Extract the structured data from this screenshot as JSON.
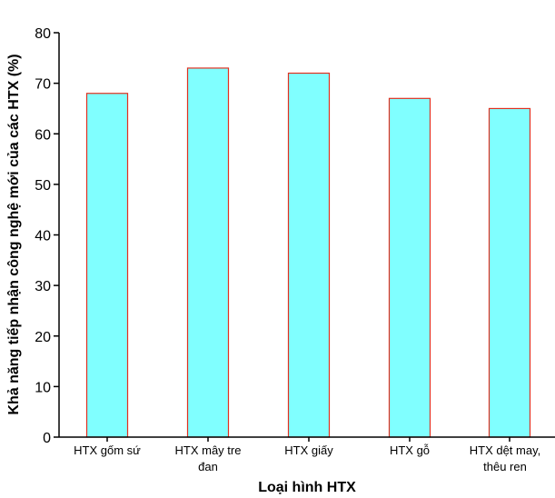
{
  "chart_data": {
    "type": "bar",
    "categories": [
      "HTX gốm sứ",
      "HTX mây tre đan",
      "HTX giấy",
      "HTX gỗ",
      "HTX dệt may, thêu ren"
    ],
    "category_lines": [
      [
        "HTX gốm sứ"
      ],
      [
        "HTX mây tre",
        "đan"
      ],
      [
        "HTX giấy"
      ],
      [
        "HTX gỗ"
      ],
      [
        "HTX dệt may,",
        "thêu ren"
      ]
    ],
    "values": [
      68,
      73,
      72,
      67,
      65
    ],
    "title": "",
    "xlabel": "Loại hình HTX",
    "ylabel": "Khả năng tiếp nhận công nghệ mới của các HTX (%)",
    "ylim": [
      0,
      80
    ],
    "yticks": [
      0,
      10,
      20,
      30,
      40,
      50,
      60,
      70,
      80
    ],
    "grid": false,
    "legend": "none",
    "colors": {
      "bar_fill": "#80ffff",
      "bar_stroke": "#e03020",
      "axis": "#000000"
    }
  }
}
